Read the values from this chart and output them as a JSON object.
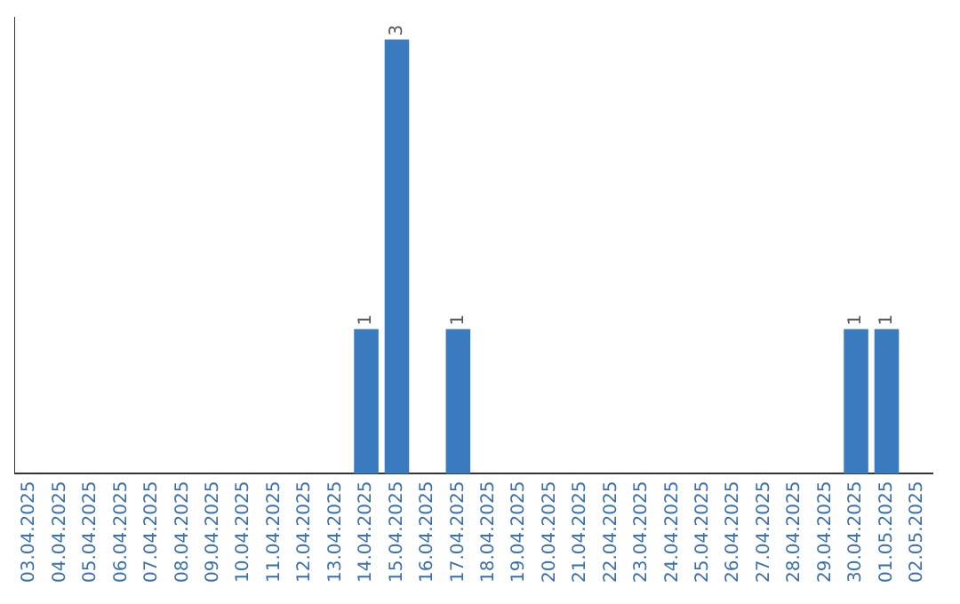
{
  "chart_data": {
    "type": "bar",
    "categories": [
      "03.04.2025",
      "04.04.2025",
      "05.04.2025",
      "06.04.2025",
      "07.04.2025",
      "08.04.2025",
      "09.04.2025",
      "10.04.2025",
      "11.04.2025",
      "12.04.2025",
      "13.04.2025",
      "14.04.2025",
      "15.04.2025",
      "16.04.2025",
      "17.04.2025",
      "18.04.2025",
      "19.04.2025",
      "20.04.2025",
      "21.04.2025",
      "22.04.2025",
      "23.04.2025",
      "24.04.2025",
      "25.04.2025",
      "26.04.2025",
      "27.04.2025",
      "28.04.2025",
      "29.04.2025",
      "30.04.2025",
      "01.05.2025",
      "02.05.2025"
    ],
    "values": [
      0,
      0,
      0,
      0,
      0,
      0,
      0,
      0,
      0,
      0,
      0,
      1,
      3,
      0,
      1,
      0,
      0,
      0,
      0,
      0,
      0,
      0,
      0,
      0,
      0,
      0,
      0,
      1,
      1,
      0
    ],
    "value_labels": [
      null,
      null,
      null,
      null,
      null,
      null,
      null,
      null,
      null,
      null,
      null,
      "1",
      "3",
      null,
      "1",
      null,
      null,
      null,
      null,
      null,
      null,
      null,
      null,
      null,
      null,
      null,
      null,
      "1",
      "1",
      null
    ],
    "color": "#3a7bbf",
    "ylim": [
      0,
      3.15
    ],
    "tick_labels": "x",
    "grid": false,
    "legend": false
  }
}
